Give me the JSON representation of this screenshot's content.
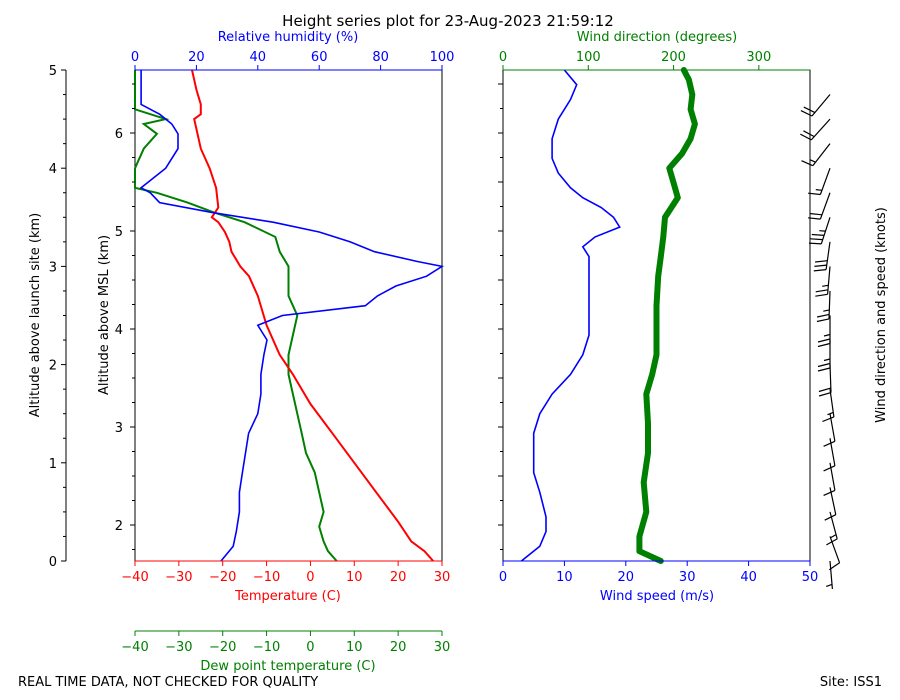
{
  "title": "Height series plot for 23-Aug-2023 21:59:12",
  "footer": {
    "quality_note": "REAL TIME DATA, NOT CHECKED FOR QUALITY",
    "site": "Site: ISS1"
  },
  "colors": {
    "temperature": "#ff0000",
    "dewpoint": "#008000",
    "humidity": "#0000ff",
    "wind_speed": "#0000ff",
    "wind_direction": "#008000",
    "barbs": "#000000"
  },
  "chart_data": [
    {
      "type": "line",
      "panel": "thermodynamic",
      "title": "Height series plot for 23-Aug-2023 21:59:12",
      "axes": {
        "temperature": {
          "label": "Temperature (C)",
          "range": [
            -40,
            30
          ],
          "ticks": [
            -40,
            -30,
            -20,
            -10,
            0,
            10,
            20,
            30
          ]
        },
        "dewpoint": {
          "label": "Dew point temperature (C)",
          "range": [
            -40,
            30
          ],
          "ticks": [
            -40,
            -30,
            -20,
            -10,
            0,
            10,
            20,
            30
          ]
        },
        "humidity": {
          "label": "Relative humidity (%)",
          "range": [
            0,
            100
          ],
          "ticks": [
            0,
            20,
            40,
            60,
            80,
            100
          ]
        },
        "altitude_site": {
          "label": "Altitude above launch site (km)",
          "range": [
            0,
            5
          ],
          "ticks": [
            0,
            1,
            2,
            3,
            4,
            5
          ]
        },
        "altitude_msl": {
          "label": "Altitude above MSL (km)",
          "ticks": [
            2,
            3,
            4,
            5,
            6
          ]
        }
      },
      "series": [
        {
          "key": "temperature",
          "altitude_km": [
            0.0,
            0.1,
            0.2,
            0.4,
            0.7,
            1.0,
            1.3,
            1.6,
            1.9,
            2.1,
            2.4,
            2.7,
            2.9,
            3.0,
            3.15,
            3.25,
            3.35,
            3.45,
            3.5,
            3.6,
            3.8,
            4.0,
            4.2,
            4.4,
            4.5,
            4.55,
            4.65,
            4.8,
            5.0
          ],
          "temperature_c": [
            28,
            26,
            23,
            20,
            15,
            10,
            5,
            0,
            -4,
            -7,
            -10,
            -12,
            -14,
            -16,
            -18,
            -18.5,
            -19.5,
            -21,
            -22.5,
            -21,
            -21.5,
            -23,
            -25,
            -26,
            -26.5,
            -25,
            -25,
            -26,
            -27
          ]
        },
        {
          "key": "dewpoint",
          "altitude_km": [
            0.0,
            0.1,
            0.2,
            0.35,
            0.5,
            0.7,
            0.9,
            1.1,
            1.3,
            1.5,
            1.7,
            1.9,
            2.1,
            2.3,
            2.5,
            2.7,
            2.8,
            2.9,
            3.0,
            3.15,
            3.3,
            3.45,
            3.55,
            3.65,
            3.75,
            3.8,
            4.0,
            4.2,
            4.35,
            4.45,
            4.5,
            4.6,
            4.7,
            5.0
          ],
          "dewpoint_c": [
            6,
            4,
            3,
            2,
            3,
            2,
            1,
            -1,
            -2,
            -3,
            -4,
            -5,
            -5,
            -4,
            -3,
            -5,
            -5,
            -5,
            -5,
            -7,
            -8,
            -15,
            -22,
            -28,
            -35,
            -40,
            -40,
            -38,
            -35,
            -38,
            -33,
            -40,
            -40,
            -40
          ]
        },
        {
          "key": "humidity",
          "altitude_km": [
            0.0,
            0.15,
            0.3,
            0.5,
            0.7,
            0.9,
            1.1,
            1.3,
            1.5,
            1.7,
            1.9,
            2.1,
            2.25,
            2.4,
            2.5,
            2.6,
            2.7,
            2.8,
            2.9,
            3.0,
            3.05,
            3.15,
            3.25,
            3.35,
            3.45,
            3.55,
            3.65,
            3.75,
            3.8,
            4.0,
            4.2,
            4.35,
            4.45,
            4.55,
            4.65,
            4.8,
            5.0
          ],
          "relative_humidity_pct": [
            28,
            32,
            33,
            34,
            34,
            35,
            36,
            37,
            40,
            41,
            41,
            42,
            43,
            40,
            48,
            75,
            79,
            85,
            95,
            100,
            92,
            78,
            70,
            60,
            45,
            25,
            8,
            5,
            2,
            10,
            14,
            14,
            12,
            8,
            2,
            2,
            2
          ]
        }
      ]
    },
    {
      "type": "line",
      "panel": "wind",
      "axes": {
        "wind_speed": {
          "label": "Wind speed (m/s)",
          "range": [
            0,
            50
          ],
          "ticks": [
            0,
            10,
            20,
            30,
            40,
            50
          ]
        },
        "wind_direction": {
          "label": "Wind direction (degrees)",
          "range": [
            0,
            360
          ],
          "ticks": [
            0,
            100,
            200,
            300
          ]
        },
        "barbs": {
          "label": "Wind direction and speed (knots)"
        }
      },
      "series": [
        {
          "key": "wind_speed",
          "altitude_km": [
            0.0,
            0.15,
            0.3,
            0.45,
            0.7,
            0.9,
            1.1,
            1.3,
            1.5,
            1.7,
            1.9,
            2.1,
            2.3,
            2.5,
            2.7,
            2.9,
            3.1,
            3.2,
            3.3,
            3.4,
            3.5,
            3.6,
            3.7,
            3.8,
            3.95,
            4.1,
            4.3,
            4.5,
            4.7,
            4.85,
            5.0
          ],
          "speed_ms": [
            3,
            6,
            7,
            7,
            6,
            5,
            5,
            5,
            6,
            8,
            11,
            13,
            14,
            14,
            14,
            14,
            14,
            13,
            15,
            19,
            18,
            16,
            13,
            11,
            9,
            8,
            8,
            9,
            11,
            12,
            10
          ]
        },
        {
          "key": "wind_direction",
          "altitude_km": [
            0.0,
            0.1,
            0.25,
            0.5,
            0.8,
            1.1,
            1.4,
            1.7,
            1.9,
            2.1,
            2.3,
            2.6,
            2.9,
            3.1,
            3.3,
            3.5,
            3.7,
            3.85,
            4.0,
            4.15,
            4.3,
            4.45,
            4.6,
            4.75,
            4.9,
            5.0
          ],
          "direction_deg": [
            185,
            160,
            160,
            168,
            165,
            170,
            170,
            168,
            175,
            180,
            180,
            180,
            182,
            185,
            188,
            190,
            205,
            200,
            195,
            210,
            220,
            225,
            220,
            222,
            218,
            212
          ]
        },
        {
          "key": "wind_barbs",
          "altitude_km": [
            0.0,
            0.25,
            0.5,
            0.75,
            1.0,
            1.25,
            1.5,
            1.75,
            2.0,
            2.25,
            2.5,
            2.75,
            3.0,
            3.25,
            3.5,
            3.75,
            4.0,
            4.25,
            4.5,
            4.75
          ],
          "speed_kt": [
            6,
            12,
            14,
            12,
            10,
            10,
            12,
            16,
            22,
            26,
            27,
            27,
            27,
            30,
            35,
            22,
            16,
            16,
            20,
            22
          ],
          "direction_deg": [
            175,
            160,
            165,
            168,
            170,
            170,
            170,
            172,
            178,
            180,
            180,
            182,
            185,
            188,
            198,
            200,
            200,
            218,
            222,
            220
          ]
        }
      ]
    }
  ]
}
